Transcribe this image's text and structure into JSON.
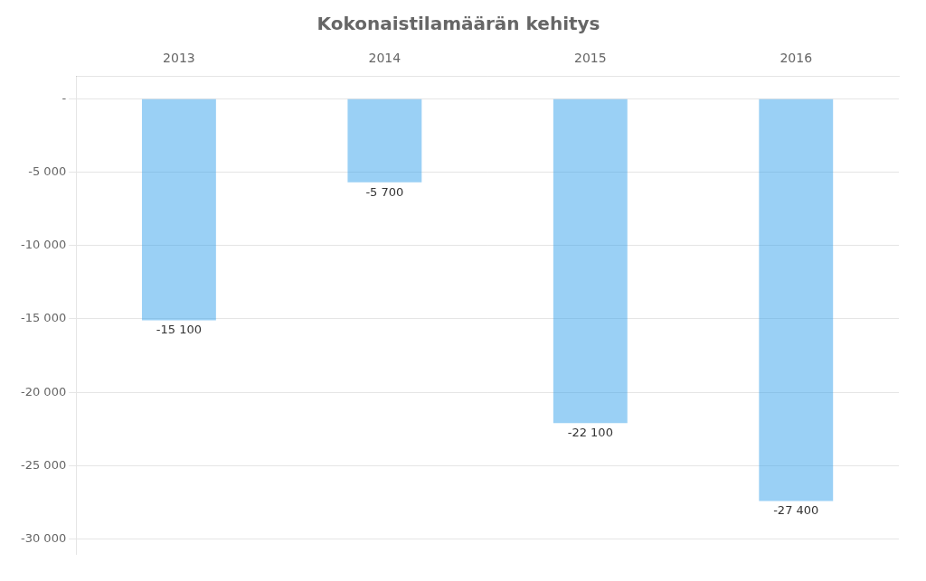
{
  "chart_data": {
    "type": "bar",
    "title": "Kokonaistilamäärän kehitys",
    "categories": [
      "2013",
      "2014",
      "2015",
      "2016"
    ],
    "values": [
      -15100,
      -5700,
      -22100,
      -27400
    ],
    "value_labels": [
      "-15 100",
      "-5 700",
      "-22 100",
      "-27 400"
    ],
    "data_labels": true,
    "ylim": [
      -31000,
      1500
    ],
    "yticks": [
      {
        "value": 0,
        "label": "-"
      },
      {
        "value": -5000,
        "label": "-5 000"
      },
      {
        "value": -10000,
        "label": "-10 000"
      },
      {
        "value": -15000,
        "label": "-15 000"
      },
      {
        "value": -20000,
        "label": "-20 000"
      },
      {
        "value": -25000,
        "label": "-25 000"
      },
      {
        "value": -30000,
        "label": "-30 000"
      }
    ],
    "grid": true
  }
}
